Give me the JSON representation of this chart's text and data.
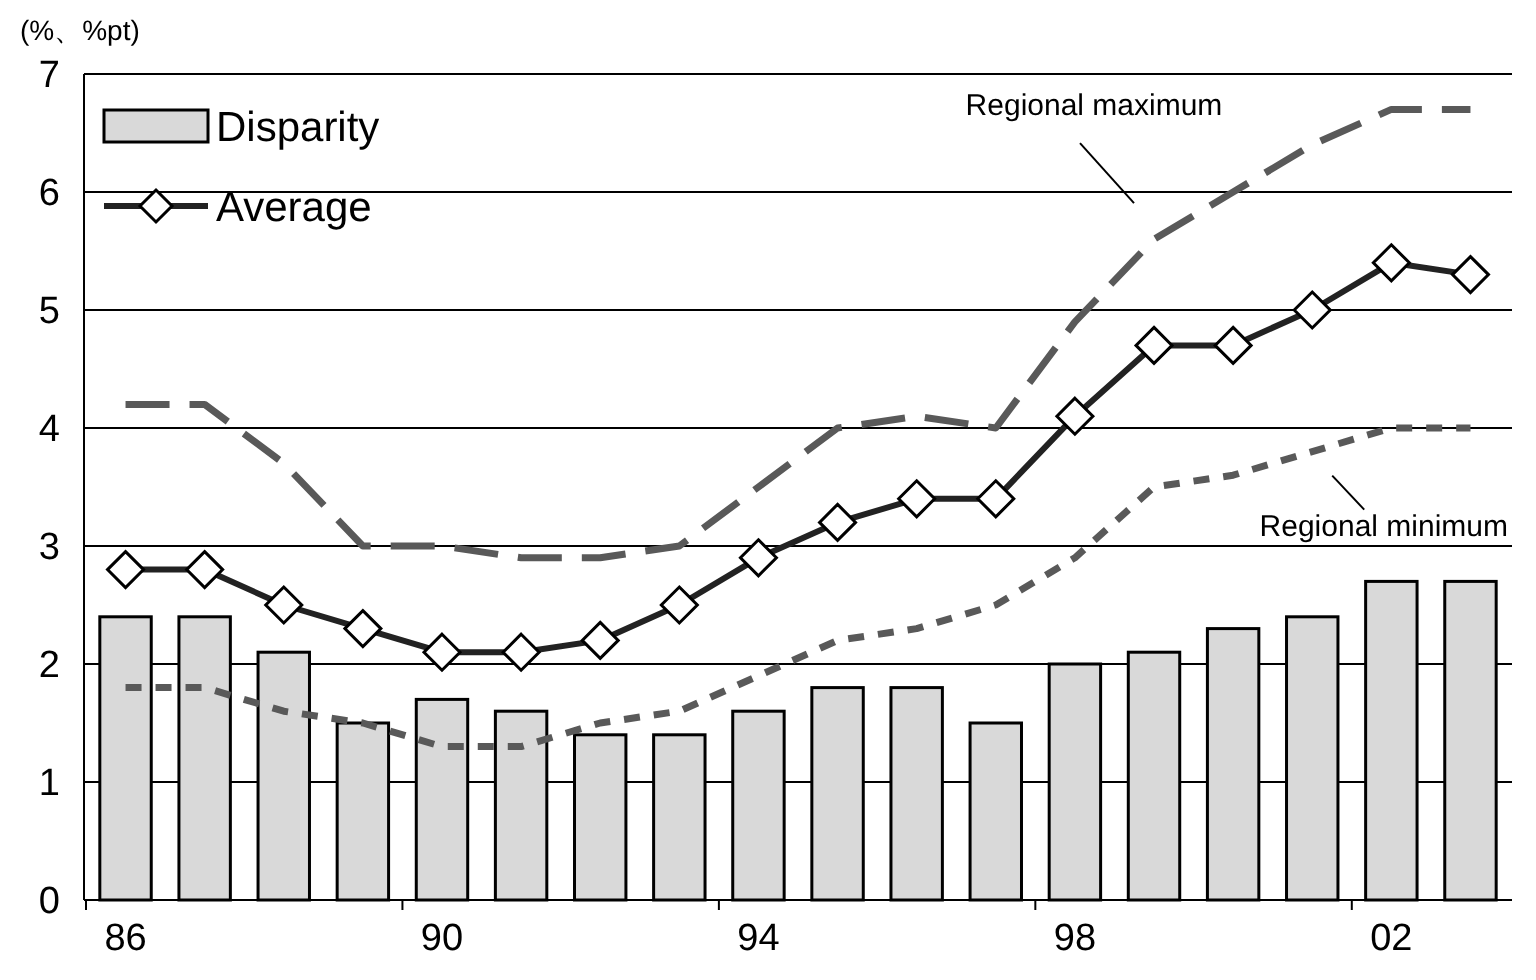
{
  "chart_data": {
    "type": "bar",
    "ylabel": "(%、%pt)",
    "categories": [
      "86",
      null,
      null,
      null,
      "90",
      null,
      null,
      null,
      "94",
      null,
      null,
      null,
      "98",
      null,
      null,
      null,
      "02",
      null
    ],
    "ylim": [
      0,
      7
    ],
    "yticks": [
      0,
      1,
      2,
      3,
      4,
      5,
      6,
      7
    ],
    "grid": "y",
    "legend": "top left",
    "series": [
      {
        "name": "Disparity",
        "color": "#d9d9d9",
        "values": [
          2.4,
          2.4,
          2.1,
          1.5,
          1.7,
          1.6,
          1.4,
          1.4,
          1.6,
          1.8,
          1.8,
          1.5,
          2.0,
          2.1,
          2.3,
          2.4,
          2.7,
          2.7
        ]
      },
      {
        "name": "Average",
        "type": "line",
        "color": "#222222",
        "marker": "diamond",
        "line_style": "solid",
        "values": [
          2.8,
          2.8,
          2.5,
          2.3,
          2.1,
          2.1,
          2.2,
          2.5,
          2.9,
          3.2,
          3.4,
          3.4,
          4.1,
          4.7,
          4.7,
          5.0,
          5.4,
          5.3
        ]
      },
      {
        "name": "Regional maximum",
        "type": "line",
        "color": "#595959",
        "marker": "none",
        "line_style": "dashed",
        "values": [
          4.2,
          4.2,
          3.7,
          3.0,
          3.0,
          2.9,
          2.9,
          3.0,
          3.5,
          4.0,
          4.1,
          4.0,
          4.9,
          5.6,
          6.0,
          6.4,
          6.7,
          6.7
        ]
      },
      {
        "name": "Regional minimum",
        "type": "line",
        "color": "#595959",
        "marker": "none",
        "line_style": "dotted",
        "values": [
          1.8,
          1.8,
          1.6,
          1.5,
          1.3,
          1.3,
          1.5,
          1.6,
          1.9,
          2.2,
          2.3,
          2.5,
          2.9,
          3.5,
          3.6,
          3.8,
          4.0,
          4.0
        ]
      }
    ]
  }
}
